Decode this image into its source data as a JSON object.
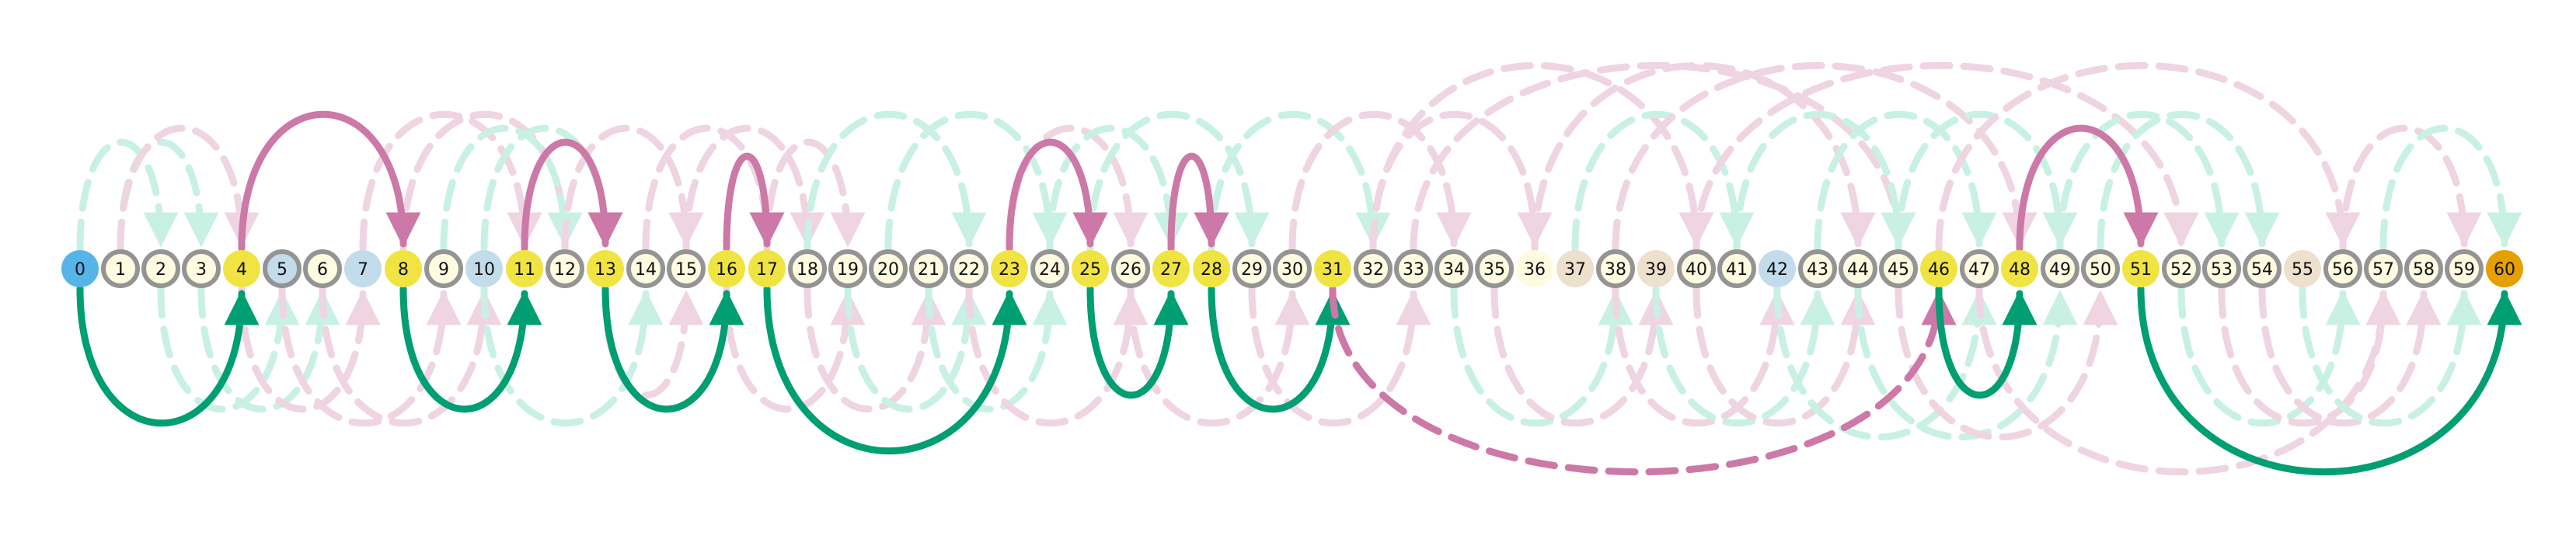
{
  "colors": {
    "background": "#ffffff",
    "start_node": "#56b4e9",
    "end_node": "#e69f00",
    "highlight_node": "#f0e442",
    "light_node": "#fffbe0",
    "blue_node": "#c3dcec",
    "beige_node": "#ede0cc",
    "ring": "#949494",
    "pink_arc": "#cc79a7",
    "green_arc": "#009e73",
    "pink_faint": "#efd4e2",
    "green_faint": "#c9f1e3"
  },
  "nodes": [
    {
      "label": "0",
      "style": "start"
    },
    {
      "label": "1",
      "style": "ring"
    },
    {
      "label": "2",
      "style": "ring"
    },
    {
      "label": "3",
      "style": "ring"
    },
    {
      "label": "4",
      "style": "highlight"
    },
    {
      "label": "5",
      "style": "blue-ring"
    },
    {
      "label": "6",
      "style": "ring"
    },
    {
      "label": "7",
      "style": "blue"
    },
    {
      "label": "8",
      "style": "highlight"
    },
    {
      "label": "9",
      "style": "ring"
    },
    {
      "label": "10",
      "style": "blue"
    },
    {
      "label": "11",
      "style": "highlight"
    },
    {
      "label": "12",
      "style": "ring"
    },
    {
      "label": "13",
      "style": "highlight"
    },
    {
      "label": "14",
      "style": "ring"
    },
    {
      "label": "15",
      "style": "ring"
    },
    {
      "label": "16",
      "style": "highlight"
    },
    {
      "label": "17",
      "style": "highlight"
    },
    {
      "label": "18",
      "style": "ring"
    },
    {
      "label": "19",
      "style": "ring"
    },
    {
      "label": "20",
      "style": "ring"
    },
    {
      "label": "21",
      "style": "ring"
    },
    {
      "label": "22",
      "style": "ring"
    },
    {
      "label": "23",
      "style": "highlight"
    },
    {
      "label": "24",
      "style": "ring"
    },
    {
      "label": "25",
      "style": "highlight"
    },
    {
      "label": "26",
      "style": "ring"
    },
    {
      "label": "27",
      "style": "highlight"
    },
    {
      "label": "28",
      "style": "highlight"
    },
    {
      "label": "29",
      "style": "ring"
    },
    {
      "label": "30",
      "style": "ring"
    },
    {
      "label": "31",
      "style": "highlight"
    },
    {
      "label": "32",
      "style": "ring"
    },
    {
      "label": "33",
      "style": "ring"
    },
    {
      "label": "34",
      "style": "ring"
    },
    {
      "label": "35",
      "style": "ring"
    },
    {
      "label": "36",
      "style": "light"
    },
    {
      "label": "37",
      "style": "beige"
    },
    {
      "label": "38",
      "style": "ring"
    },
    {
      "label": "39",
      "style": "beige"
    },
    {
      "label": "40",
      "style": "ring"
    },
    {
      "label": "41",
      "style": "ring"
    },
    {
      "label": "42",
      "style": "blue"
    },
    {
      "label": "43",
      "style": "ring"
    },
    {
      "label": "44",
      "style": "ring"
    },
    {
      "label": "45",
      "style": "ring"
    },
    {
      "label": "46",
      "style": "highlight"
    },
    {
      "label": "47",
      "style": "ring"
    },
    {
      "label": "48",
      "style": "highlight"
    },
    {
      "label": "49",
      "style": "ring"
    },
    {
      "label": "50",
      "style": "ring"
    },
    {
      "label": "51",
      "style": "highlight"
    },
    {
      "label": "52",
      "style": "ring"
    },
    {
      "label": "53",
      "style": "ring"
    },
    {
      "label": "54",
      "style": "ring"
    },
    {
      "label": "55",
      "style": "beige"
    },
    {
      "label": "56",
      "style": "ring"
    },
    {
      "label": "57",
      "style": "ring"
    },
    {
      "label": "58",
      "style": "ring"
    },
    {
      "label": "59",
      "style": "ring"
    },
    {
      "label": "60",
      "style": "end"
    }
  ],
  "path_edges": [
    {
      "from": 0,
      "to": 4,
      "color": "green",
      "side": "below",
      "dashed": false
    },
    {
      "from": 4,
      "to": 8,
      "color": "pink",
      "side": "above",
      "dashed": false
    },
    {
      "from": 8,
      "to": 11,
      "color": "green",
      "side": "below",
      "dashed": false
    },
    {
      "from": 11,
      "to": 13,
      "color": "pink",
      "side": "above",
      "dashed": false
    },
    {
      "from": 13,
      "to": 16,
      "color": "green",
      "side": "below",
      "dashed": false
    },
    {
      "from": 16,
      "to": 17,
      "color": "pink",
      "side": "above",
      "dashed": false
    },
    {
      "from": 17,
      "to": 23,
      "color": "green",
      "side": "below",
      "dashed": false
    },
    {
      "from": 23,
      "to": 25,
      "color": "pink",
      "side": "above",
      "dashed": false
    },
    {
      "from": 25,
      "to": 27,
      "color": "green",
      "side": "below",
      "dashed": false
    },
    {
      "from": 27,
      "to": 28,
      "color": "pink",
      "side": "above",
      "dashed": false
    },
    {
      "from": 28,
      "to": 31,
      "color": "green",
      "side": "below",
      "dashed": false
    },
    {
      "from": 31,
      "to": 46,
      "color": "pink",
      "side": "below",
      "dashed": true
    },
    {
      "from": 46,
      "to": 48,
      "color": "green",
      "side": "below",
      "dashed": false
    },
    {
      "from": 48,
      "to": 51,
      "color": "pink",
      "side": "above",
      "dashed": false
    },
    {
      "from": 51,
      "to": 60,
      "color": "green",
      "side": "below",
      "dashed": false
    }
  ],
  "faint_edges": [
    {
      "from": 0,
      "to": 2,
      "color": "green",
      "side": "above"
    },
    {
      "from": 1,
      "to": 3,
      "color": "green",
      "side": "above"
    },
    {
      "from": 1,
      "to": 4,
      "color": "pink",
      "side": "above"
    },
    {
      "from": 2,
      "to": 5,
      "color": "green",
      "side": "below"
    },
    {
      "from": 3,
      "to": 6,
      "color": "green",
      "side": "below"
    },
    {
      "from": 4,
      "to": 7,
      "color": "pink",
      "side": "below"
    },
    {
      "from": 5,
      "to": 9,
      "color": "pink",
      "side": "below"
    },
    {
      "from": 6,
      "to": 10,
      "color": "pink",
      "side": "below"
    },
    {
      "from": 7,
      "to": 11,
      "color": "pink",
      "side": "above"
    },
    {
      "from": 8,
      "to": 12,
      "color": "pink",
      "side": "above"
    },
    {
      "from": 9,
      "to": 12,
      "color": "green",
      "side": "above"
    },
    {
      "from": 10,
      "to": 13,
      "color": "green",
      "side": "above"
    },
    {
      "from": 10,
      "to": 14,
      "color": "green",
      "side": "below"
    },
    {
      "from": 12,
      "to": 15,
      "color": "pink",
      "side": "above"
    },
    {
      "from": 13,
      "to": 15,
      "color": "pink",
      "side": "below"
    },
    {
      "from": 14,
      "to": 17,
      "color": "pink",
      "side": "above"
    },
    {
      "from": 15,
      "to": 18,
      "color": "pink",
      "side": "above"
    },
    {
      "from": 16,
      "to": 19,
      "color": "pink",
      "side": "below"
    },
    {
      "from": 17,
      "to": 19,
      "color": "pink",
      "side": "above"
    },
    {
      "from": 18,
      "to": 21,
      "color": "pink",
      "side": "below"
    },
    {
      "from": 18,
      "to": 22,
      "color": "green",
      "side": "above"
    },
    {
      "from": 19,
      "to": 22,
      "color": "green",
      "side": "below"
    },
    {
      "from": 20,
      "to": 24,
      "color": "green",
      "side": "above"
    },
    {
      "from": 21,
      "to": 24,
      "color": "green",
      "side": "below"
    },
    {
      "from": 22,
      "to": 26,
      "color": "pink",
      "side": "below"
    },
    {
      "from": 23,
      "to": 26,
      "color": "pink",
      "side": "above"
    },
    {
      "from": 24,
      "to": 27,
      "color": "green",
      "side": "above"
    },
    {
      "from": 25,
      "to": 29,
      "color": "green",
      "side": "above"
    },
    {
      "from": 26,
      "to": 30,
      "color": "pink",
      "side": "below"
    },
    {
      "from": 28,
      "to": 32,
      "color": "green",
      "side": "above"
    },
    {
      "from": 29,
      "to": 33,
      "color": "pink",
      "side": "below"
    },
    {
      "from": 30,
      "to": 34,
      "color": "pink",
      "side": "above"
    },
    {
      "from": 32,
      "to": 36,
      "color": "pink",
      "side": "above"
    },
    {
      "from": 32,
      "to": 40,
      "color": "pink",
      "side": "above"
    },
    {
      "from": 33,
      "to": 45,
      "color": "pink",
      "side": "above"
    },
    {
      "from": 34,
      "to": 38,
      "color": "green",
      "side": "below"
    },
    {
      "from": 35,
      "to": 39,
      "color": "pink",
      "side": "below"
    },
    {
      "from": 36,
      "to": 44,
      "color": "pink",
      "side": "above"
    },
    {
      "from": 37,
      "to": 41,
      "color": "green",
      "side": "above"
    },
    {
      "from": 38,
      "to": 42,
      "color": "pink",
      "side": "below"
    },
    {
      "from": 38,
      "to": 48,
      "color": "pink",
      "side": "above"
    },
    {
      "from": 39,
      "to": 43,
      "color": "green",
      "side": "below"
    },
    {
      "from": 40,
      "to": 44,
      "color": "pink",
      "side": "below"
    },
    {
      "from": 40,
      "to": 52,
      "color": "pink",
      "side": "above"
    },
    {
      "from": 41,
      "to": 45,
      "color": "green",
      "side": "above"
    },
    {
      "from": 42,
      "to": 47,
      "color": "green",
      "side": "below"
    },
    {
      "from": 43,
      "to": 47,
      "color": "green",
      "side": "above"
    },
    {
      "from": 44,
      "to": 49,
      "color": "green",
      "side": "below"
    },
    {
      "from": 45,
      "to": 50,
      "color": "pink",
      "side": "below"
    },
    {
      "from": 45,
      "to": 49,
      "color": "green",
      "side": "above"
    },
    {
      "from": 46,
      "to": 56,
      "color": "pink",
      "side": "above"
    },
    {
      "from": 47,
      "to": 57,
      "color": "pink",
      "side": "below"
    },
    {
      "from": 49,
      "to": 53,
      "color": "green",
      "side": "above"
    },
    {
      "from": 50,
      "to": 54,
      "color": "green",
      "side": "above"
    },
    {
      "from": 52,
      "to": 56,
      "color": "green",
      "side": "below"
    },
    {
      "from": 53,
      "to": 57,
      "color": "pink",
      "side": "below"
    },
    {
      "from": 54,
      "to": 58,
      "color": "pink",
      "side": "below"
    },
    {
      "from": 55,
      "to": 59,
      "color": "green",
      "side": "below"
    },
    {
      "from": 56,
      "to": 59,
      "color": "pink",
      "side": "above"
    },
    {
      "from": 57,
      "to": 60,
      "color": "green",
      "side": "above"
    }
  ]
}
